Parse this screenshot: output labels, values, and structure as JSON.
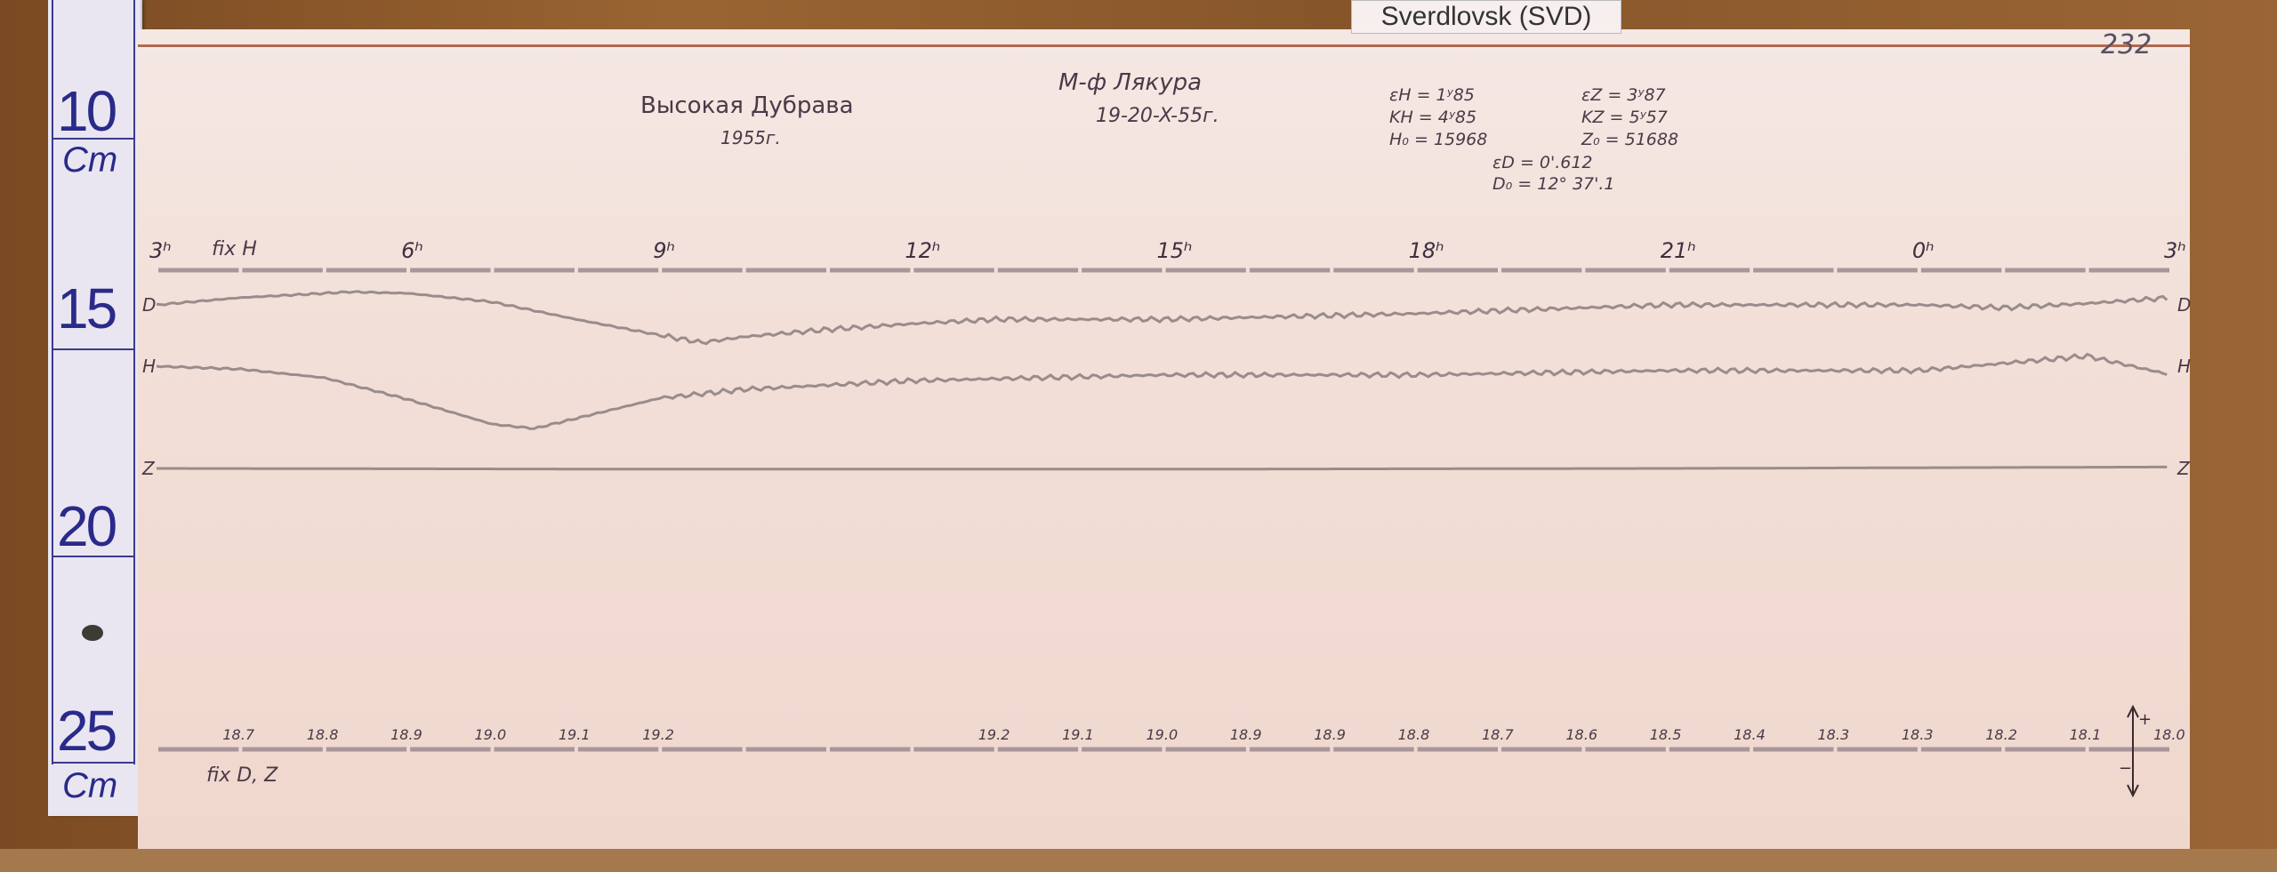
{
  "tag_label": "Sverdlovsk (SVD)",
  "ruler": {
    "numbers": [
      "10",
      "15",
      "20",
      "25"
    ],
    "unit": "Cm",
    "unit_bottom": "Cm"
  },
  "header": {
    "station": "Высокая Дубрава",
    "year": "1955г.",
    "instrument": "М-ф Лякура",
    "dates": "19-20-X-55г.",
    "sheet_number": "232",
    "constants": {
      "eH": "εH = 1ʸ85",
      "KH": "KH = 4ʸ85",
      "H0": "H₀ = 15968",
      "eZ": "εZ = 3ʸ87",
      "KZ": "KZ = 5ʸ57",
      "Z0": "Z₀ = 51688",
      "eD": "εD = 0'.612",
      "D0": "D₀ = 12° 37'.1"
    }
  },
  "chart_data": {
    "type": "line",
    "title": "",
    "xlabel": "",
    "ylabel": "",
    "x_unit": "hours",
    "xlim": [
      3,
      27
    ],
    "hour_ticks": [
      {
        "hour": 3,
        "label": "3ʰ"
      },
      {
        "hour": 6,
        "label": "6ʰ"
      },
      {
        "hour": 9,
        "label": "9ʰ"
      },
      {
        "hour": 12,
        "label": "12ʰ"
      },
      {
        "hour": 15,
        "label": "15ʰ"
      },
      {
        "hour": 18,
        "label": "18ʰ"
      },
      {
        "hour": 21,
        "label": "21ʰ"
      },
      {
        "hour": 24,
        "label": "0ʰ"
      },
      {
        "hour": 27,
        "label": "3ʰ"
      }
    ],
    "fix_H_label": "fix H",
    "fix_DZ_label": "fix D, Z",
    "polarity": {
      "plus": "+",
      "minus": "−"
    },
    "series": [
      {
        "name": "D",
        "color": "#9a8c8c",
        "x": [
          3,
          4,
          5,
          5.3,
          6,
          7,
          8,
          9,
          9.5,
          10,
          11,
          12,
          13,
          15,
          18,
          21,
          24,
          25,
          26,
          27
        ],
        "values": [
          0,
          5,
          8,
          9,
          8,
          2,
          -10,
          -21,
          -26,
          -22,
          -17,
          -13,
          -10,
          -10,
          -6,
          0,
          0,
          -2,
          1,
          5
        ]
      },
      {
        "name": "H",
        "color": "#9a8c8c",
        "x": [
          3,
          4,
          5,
          6,
          7,
          7.5,
          8,
          9,
          10,
          11,
          12,
          15,
          18,
          21,
          24,
          25,
          26,
          27
        ],
        "values": [
          0,
          -2,
          -8,
          -23,
          -40,
          -43,
          -36,
          -22,
          -16,
          -13,
          -10,
          -6,
          -6,
          -3,
          -3,
          2,
          7,
          -6
        ]
      },
      {
        "name": "Z",
        "color": "#9a8c8c",
        "x": [
          3,
          9,
          15,
          21,
          27
        ],
        "values": [
          0,
          -0.5,
          -0.5,
          0,
          1
        ]
      }
    ],
    "temperature_labels": [
      {
        "hour": 4,
        "label": "18.7"
      },
      {
        "hour": 5,
        "label": "18.8"
      },
      {
        "hour": 6,
        "label": "18.9"
      },
      {
        "hour": 7,
        "label": "19.0"
      },
      {
        "hour": 8,
        "label": "19.1"
      },
      {
        "hour": 9,
        "label": "19.2"
      },
      {
        "hour": 13,
        "label": "19.2"
      },
      {
        "hour": 14,
        "label": "19.1"
      },
      {
        "hour": 15,
        "label": "19.0"
      },
      {
        "hour": 16,
        "label": "18.9"
      },
      {
        "hour": 17,
        "label": "18.9"
      },
      {
        "hour": 18,
        "label": "18.8"
      },
      {
        "hour": 19,
        "label": "18.7"
      },
      {
        "hour": 20,
        "label": "18.6"
      },
      {
        "hour": 21,
        "label": "18.5"
      },
      {
        "hour": 22,
        "label": "18.4"
      },
      {
        "hour": 23,
        "label": "18.3"
      },
      {
        "hour": 24,
        "label": "18.3"
      },
      {
        "hour": 25,
        "label": "18.2"
      },
      {
        "hour": 26,
        "label": "18.1"
      },
      {
        "hour": 27,
        "label": "18.0"
      }
    ]
  }
}
